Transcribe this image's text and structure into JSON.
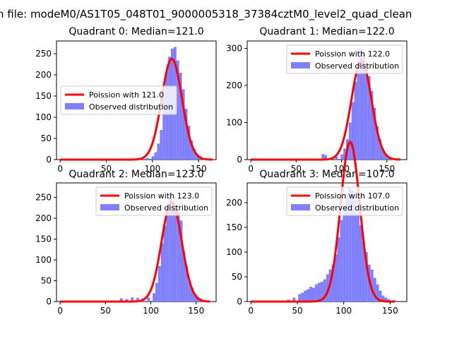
{
  "figure": {
    "suptitle": "n file: modeM0/AS1T05_048T01_9000005318_37384cztM0_level2_quad_clean"
  },
  "colors": {
    "poisson_line": "#ff0000",
    "histogram_fill": "#8080ff",
    "axes": "#000000"
  },
  "chart_data": [
    {
      "type": "bar",
      "title": "Quadrant 0: Median=121.0",
      "xlim": [
        -4,
        169
      ],
      "ylim": [
        0,
        280
      ],
      "xticks": [
        0,
        50,
        100,
        150
      ],
      "yticks": [
        0,
        50,
        100,
        150,
        200,
        250
      ],
      "legend_position": "center-left",
      "series": [
        {
          "name": "Poission with 121.0",
          "type": "line",
          "mean": 121.0,
          "x_range": [
            0,
            165
          ]
        },
        {
          "name": "Observed distribution",
          "type": "histogram",
          "bin_width": 3,
          "bins": [
            [
              72,
              2
            ],
            [
              78,
              2
            ],
            [
              84,
              4
            ],
            [
              87,
              4
            ],
            [
              93,
              4
            ],
            [
              99,
              8
            ],
            [
              102,
              17
            ],
            [
              105,
              38
            ],
            [
              108,
              70
            ],
            [
              111,
              158
            ],
            [
              114,
              208
            ],
            [
              117,
              243
            ],
            [
              120,
              262
            ],
            [
              123,
              266
            ],
            [
              126,
              234
            ],
            [
              129,
              205
            ],
            [
              132,
              166
            ],
            [
              135,
              120
            ],
            [
              138,
              80
            ],
            [
              141,
              45
            ],
            [
              144,
              25
            ],
            [
              147,
              14
            ],
            [
              150,
              8
            ],
            [
              153,
              4
            ]
          ]
        }
      ]
    },
    {
      "type": "bar",
      "title": "Quadrant 1: Median=122.0",
      "xlim": [
        -4,
        172
      ],
      "ylim": [
        0,
        320
      ],
      "xticks": [
        0,
        50,
        100,
        150
      ],
      "yticks": [
        0,
        100,
        200,
        300
      ],
      "legend_position": "upper-right",
      "series": [
        {
          "name": "Poission with 122.0",
          "type": "line",
          "mean": 122.0,
          "x_range": [
            0,
            165
          ]
        },
        {
          "name": "Observed distribution",
          "type": "histogram",
          "bin_width": 3,
          "bins": [
            [
              78,
              15
            ],
            [
              81,
              12
            ],
            [
              87,
              5
            ],
            [
              93,
              8
            ],
            [
              99,
              14
            ],
            [
              102,
              30
            ],
            [
              105,
              55
            ],
            [
              108,
              100
            ],
            [
              111,
              155
            ],
            [
              114,
              210
            ],
            [
              117,
              262
            ],
            [
              120,
              300
            ],
            [
              123,
              288
            ],
            [
              126,
              255
            ],
            [
              129,
              225
            ],
            [
              132,
              185
            ],
            [
              135,
              140
            ],
            [
              138,
              90
            ],
            [
              141,
              55
            ],
            [
              144,
              30
            ],
            [
              147,
              15
            ],
            [
              150,
              8
            ],
            [
              153,
              4
            ]
          ]
        }
      ]
    },
    {
      "type": "bar",
      "title": "Quadrant 2: Median=123.0",
      "xlim": [
        -4,
        172
      ],
      "ylim": [
        0,
        285
      ],
      "xticks": [
        0,
        50,
        100,
        150
      ],
      "yticks": [
        0,
        50,
        100,
        150,
        200,
        250
      ],
      "legend_position": "upper-right",
      "series": [
        {
          "name": "Poission with 123.0",
          "type": "line",
          "mean": 123.0,
          "x_range": [
            0,
            165
          ]
        },
        {
          "name": "Observed distribution",
          "type": "histogram",
          "bin_width": 3,
          "bins": [
            [
              66,
              8
            ],
            [
              72,
              6
            ],
            [
              78,
              10
            ],
            [
              84,
              9
            ],
            [
              90,
              8
            ],
            [
              96,
              10
            ],
            [
              102,
              20
            ],
            [
              105,
              45
            ],
            [
              108,
              85
            ],
            [
              111,
              140
            ],
            [
              114,
              182
            ],
            [
              117,
              225
            ],
            [
              120,
              262
            ],
            [
              123,
              240
            ],
            [
              126,
              225
            ],
            [
              129,
              215
            ],
            [
              132,
              195
            ],
            [
              135,
              120
            ],
            [
              138,
              85
            ],
            [
              141,
              50
            ],
            [
              144,
              32
            ],
            [
              147,
              20
            ],
            [
              150,
              12
            ],
            [
              153,
              8
            ],
            [
              156,
              4
            ]
          ]
        }
      ]
    },
    {
      "type": "bar",
      "title": "Quadrant 3: Median=107.0",
      "xlim": [
        -4,
        168
      ],
      "ylim": [
        0,
        240
      ],
      "xticks": [
        0,
        50,
        100,
        150
      ],
      "yticks": [
        0,
        50,
        100,
        150,
        200
      ],
      "legend_position": "upper-right",
      "series": [
        {
          "name": "Poission with 107.0",
          "type": "line",
          "mean": 107.0,
          "x_range": [
            0,
            155
          ]
        },
        {
          "name": "Observed distribution",
          "type": "histogram",
          "bin_width": 3,
          "bins": [
            [
              39,
              4
            ],
            [
              45,
              8
            ],
            [
              51,
              15
            ],
            [
              54,
              18
            ],
            [
              57,
              22
            ],
            [
              60,
              25
            ],
            [
              63,
              30
            ],
            [
              66,
              28
            ],
            [
              69,
              35
            ],
            [
              72,
              38
            ],
            [
              75,
              40
            ],
            [
              78,
              45
            ],
            [
              81,
              55
            ],
            [
              84,
              65
            ],
            [
              87,
              75
            ],
            [
              90,
              95
            ],
            [
              93,
              130
            ],
            [
              96,
              165
            ],
            [
              99,
              195
            ],
            [
              102,
              215
            ],
            [
              105,
              230
            ],
            [
              108,
              225
            ],
            [
              111,
              205
            ],
            [
              114,
              180
            ],
            [
              117,
              155
            ],
            [
              120,
              120
            ],
            [
              123,
              100
            ],
            [
              126,
              75
            ],
            [
              129,
              65
            ],
            [
              132,
              48
            ],
            [
              135,
              35
            ],
            [
              138,
              22
            ],
            [
              141,
              12
            ],
            [
              144,
              8
            ],
            [
              147,
              5
            ],
            [
              153,
              3
            ]
          ]
        }
      ]
    }
  ]
}
